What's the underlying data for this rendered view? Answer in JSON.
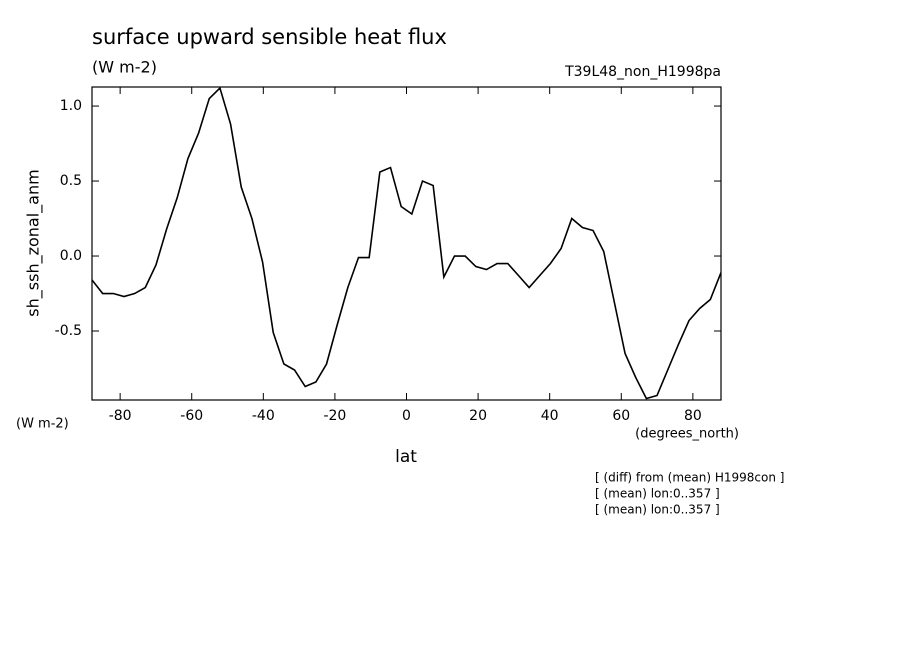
{
  "chart_data": {
    "type": "line",
    "title": "surface upward sensible heat flux",
    "subtitle": "(W m-2)",
    "run_label": "T39L48_non_H1998pa",
    "y_label": "sh_ssh_zonal_anm",
    "y_unit": "(W m-2)",
    "x_label": "lat",
    "x_unit": "(degrees_north)",
    "notes": [
      "[ (diff) from (mean) H1998con ]",
      "[ (mean) lon:0..357 ]",
      "[ (mean) lon:0..357 ]"
    ],
    "x": [
      -87.86,
      -84.88,
      -81.9,
      -78.93,
      -75.95,
      -72.97,
      -69.99,
      -67.01,
      -64.04,
      -61.06,
      -58.08,
      -55.1,
      -52.12,
      -49.15,
      -46.17,
      -43.19,
      -40.21,
      -37.23,
      -34.26,
      -31.28,
      -28.3,
      -25.32,
      -22.34,
      -19.37,
      -16.39,
      -13.41,
      -10.43,
      -7.45,
      -4.47,
      -1.49,
      1.49,
      4.47,
      7.45,
      10.43,
      13.41,
      16.39,
      19.37,
      22.34,
      25.32,
      28.3,
      31.28,
      34.26,
      37.23,
      40.21,
      43.19,
      46.17,
      49.15,
      52.12,
      55.1,
      58.08,
      61.06,
      64.04,
      67.01,
      69.99,
      72.97,
      75.95,
      78.93,
      81.9,
      84.88,
      87.86
    ],
    "series": [
      {
        "name": "sh_ssh_zonal_anm",
        "color": "#000000",
        "values": [
          -0.16,
          -0.25,
          -0.25,
          -0.27,
          -0.25,
          -0.21,
          -0.06,
          0.18,
          0.39,
          0.65,
          0.82,
          1.05,
          1.12,
          0.88,
          0.46,
          0.25,
          -0.04,
          -0.51,
          -0.72,
          -0.76,
          -0.87,
          -0.84,
          -0.72,
          -0.46,
          -0.21,
          -0.01,
          -0.01,
          0.56,
          0.59,
          0.33,
          0.28,
          0.5,
          0.47,
          -0.14,
          0.0,
          0.0,
          -0.07,
          -0.09,
          -0.05,
          -0.05,
          -0.13,
          -0.21,
          -0.13,
          -0.05,
          0.05,
          0.25,
          0.19,
          0.17,
          0.03,
          -0.31,
          -0.65,
          -0.81,
          -0.95,
          -0.93,
          -0.76,
          -0.59,
          -0.43,
          -0.35,
          -0.29,
          -0.11
        ]
      }
    ],
    "xlim": [
      -87.86,
      87.86
    ],
    "xticks": [
      -80,
      -60,
      -40,
      -20,
      0,
      20,
      40,
      60,
      80
    ],
    "ylim": [
      -0.96,
      1.127
    ],
    "yticks": [
      {
        "value": 1,
        "label": "1.0"
      },
      0.5,
      {
        "value": 0,
        "label": "0.0"
      },
      -0.5
    ]
  }
}
